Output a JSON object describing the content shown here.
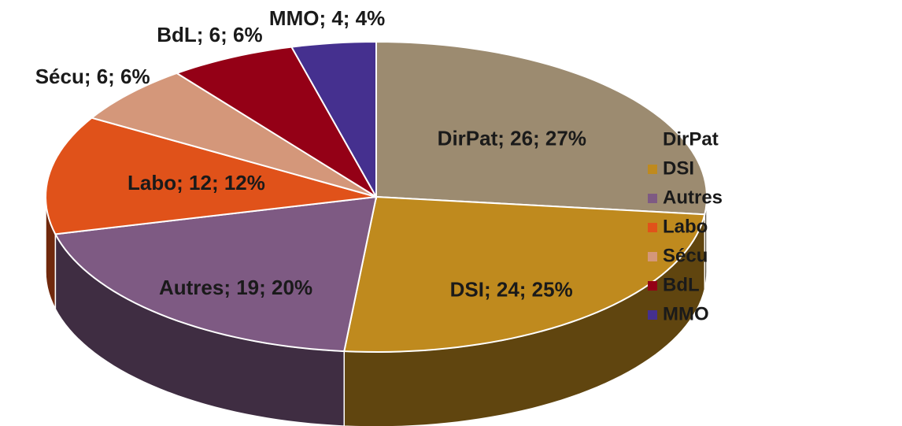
{
  "chart_data": {
    "type": "pie",
    "categories": [
      "DirPat",
      "DSI",
      "Autres",
      "Labo",
      "Sécu",
      "BdL",
      "MMO"
    ],
    "values": [
      26,
      24,
      19,
      12,
      6,
      6,
      4
    ],
    "value_labels": [
      "DirPat; 26; 27%",
      "DSI; 24; 25%",
      "Autres; 19; 20%",
      "Labo; 12; 12%",
      "Sécu; 6; 6%",
      "BdL; 6; 6%",
      "MMO; 4; 4%"
    ],
    "colors": [
      "#9c8b70",
      "#bf8a1e",
      "#7e5a83",
      "#e0521a",
      "#d4977a",
      "#940016",
      "#45308f"
    ],
    "legend": "right"
  }
}
